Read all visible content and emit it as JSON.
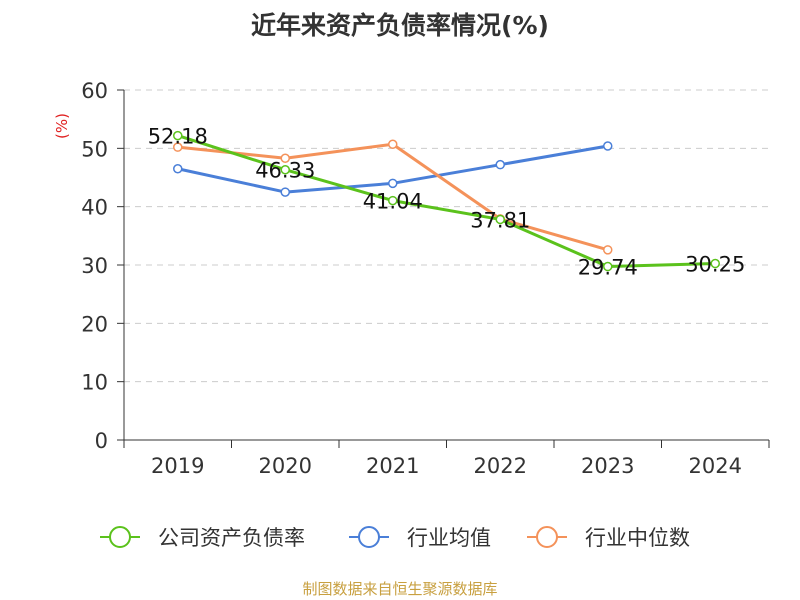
{
  "chart_data": {
    "type": "line",
    "title": "近年来资产负债率情况(%)",
    "ylabel": "(%)",
    "categories": [
      "2019",
      "2020",
      "2021",
      "2022",
      "2023",
      "2024"
    ],
    "ylim": [
      0,
      60
    ],
    "yticks": [
      0,
      10,
      20,
      30,
      40,
      50,
      60
    ],
    "grid": true,
    "legend": "bottom",
    "series": [
      {
        "name": "公司资产负债率",
        "color": "#5bc21c",
        "values": [
          52.18,
          46.33,
          41.04,
          37.81,
          29.74,
          30.25
        ],
        "labels": [
          "52.18",
          "46.33",
          "41.04",
          "37.81",
          "29.74",
          "30.25"
        ]
      },
      {
        "name": "行业均值",
        "color": "#4a7fd8",
        "values": [
          46.5,
          42.5,
          44.0,
          47.2,
          50.4,
          null
        ]
      },
      {
        "name": "行业中位数",
        "color": "#f4925a",
        "values": [
          50.2,
          48.3,
          50.7,
          37.9,
          32.6,
          null
        ]
      }
    ]
  },
  "source": "制图数据来自恒生聚源数据库"
}
